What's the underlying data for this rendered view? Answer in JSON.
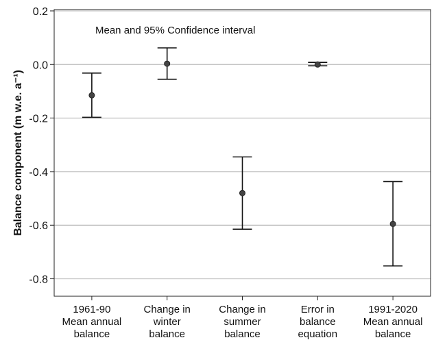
{
  "chart_data": {
    "type": "errorbar",
    "ylabel": "Balance component (m w.e. a⁻¹)",
    "annotation": "Mean and 95% Confidence interval",
    "ylim": [
      -0.865,
      0.205
    ],
    "yticks": [
      0.2,
      0.0,
      -0.2,
      -0.4,
      -0.6,
      -0.8
    ],
    "ytick_labels": [
      "0.2",
      "0.0",
      "-0.2",
      "-0.4",
      "-0.6",
      "-0.8"
    ],
    "grid": true,
    "categories": [
      [
        "1961-90",
        "Mean annual",
        "balance"
      ],
      [
        "Change in",
        "winter",
        "balance"
      ],
      [
        "Change in",
        "summer",
        "balance"
      ],
      [
        "Error in",
        "balance",
        "equation"
      ],
      [
        "1991-2020",
        "Mean annual",
        "balance"
      ]
    ],
    "points": [
      {
        "mean": -0.115,
        "lower": -0.197,
        "upper": -0.032
      },
      {
        "mean": 0.003,
        "lower": -0.055,
        "upper": 0.062
      },
      {
        "mean": -0.48,
        "lower": -0.615,
        "upper": -0.345
      },
      {
        "mean": 0.0,
        "lower": -0.005,
        "upper": 0.008
      },
      {
        "mean": -0.595,
        "lower": -0.752,
        "upper": -0.437
      }
    ],
    "colors": {
      "marker": "#444444",
      "bar": "#111111",
      "grid": "#bdbdbd",
      "frame": "#222222"
    }
  }
}
